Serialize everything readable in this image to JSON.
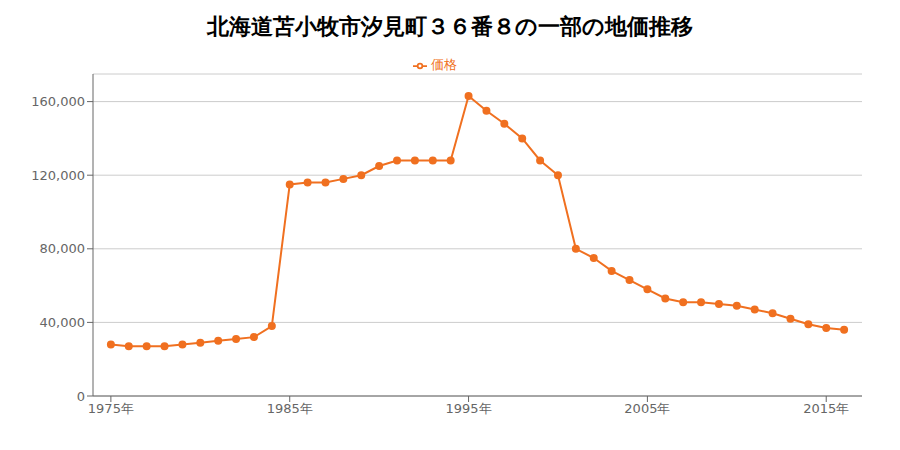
{
  "chart_data": {
    "type": "line",
    "title": "北海道苫小牧市汐見町３６番８の一部の地価推移",
    "x": [
      1975,
      1976,
      1977,
      1978,
      1979,
      1980,
      1981,
      1982,
      1983,
      1984,
      1985,
      1986,
      1987,
      1988,
      1989,
      1990,
      1991,
      1992,
      1993,
      1994,
      1995,
      1996,
      1997,
      1998,
      1999,
      2000,
      2001,
      2002,
      2003,
      2004,
      2005,
      2006,
      2007,
      2008,
      2009,
      2010,
      2011,
      2012,
      2013,
      2014,
      2015,
      2016
    ],
    "series": [
      {
        "name": "価格",
        "color": "#F07020",
        "marker": "circle",
        "values": [
          28000,
          27000,
          27000,
          27000,
          28000,
          29000,
          30000,
          31000,
          32000,
          38000,
          115000,
          116000,
          116000,
          118000,
          120000,
          125000,
          128000,
          128000,
          128000,
          128000,
          163000,
          155000,
          148000,
          140000,
          128000,
          120000,
          80000,
          75000,
          68000,
          63000,
          58000,
          53000,
          51000,
          51000,
          50000,
          49000,
          47000,
          45000,
          42000,
          39000,
          37000,
          36000
        ]
      }
    ],
    "xlim": [
      1974,
      2017
    ],
    "xticks": [
      {
        "value": 1975,
        "label": "1975年"
      },
      {
        "value": 1985,
        "label": "1985年"
      },
      {
        "value": 1995,
        "label": "1995年"
      },
      {
        "value": 2005,
        "label": "2005年"
      },
      {
        "value": 2015,
        "label": "2015年"
      }
    ],
    "ylim": [
      0,
      175000
    ],
    "yticks": [
      0,
      {
        "value": 40000,
        "label": "40,000"
      },
      {
        "value": 80000,
        "label": "80,000"
      },
      {
        "value": 120000,
        "label": "120,000"
      },
      {
        "value": 160000,
        "label": "160,000"
      }
    ],
    "grid": "y",
    "legend": "top"
  }
}
